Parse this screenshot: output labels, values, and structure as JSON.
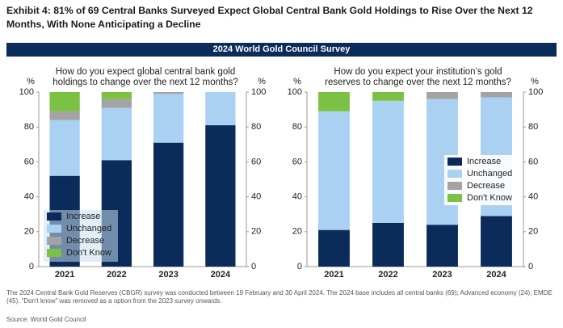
{
  "exhibit_title": "Exhibit 4: 81% of 69 Central Banks Surveyed Expect Global Central Bank Gold Holdings to Rise Over the Next 12 Months, With None Anticipating a Decline",
  "banner": "2024 World Gold Council Survey",
  "chart_data": [
    {
      "type": "stacked_bar",
      "title": "How do you expect global central bank gold holdings to change over the next 12 months?",
      "y_label": "%",
      "y2_label": "%",
      "categories": [
        "2021",
        "2022",
        "2023",
        "2024"
      ],
      "series": [
        {
          "name": "Increase",
          "color": "#0b2b5a",
          "values": [
            52,
            61,
            71,
            81
          ]
        },
        {
          "name": "Unchanged",
          "color": "#aad1f2",
          "values": [
            32,
            30,
            28,
            19
          ]
        },
        {
          "name": "Decrease",
          "color": "#a3a3a3",
          "values": [
            5,
            5,
            1,
            0
          ]
        },
        {
          "name": "Don't Know",
          "color": "#7cc143",
          "values": [
            11,
            4,
            null,
            null
          ]
        }
      ],
      "ylim": [
        0,
        100
      ],
      "yticks": [
        0,
        20,
        40,
        60,
        80,
        100
      ],
      "y2lim": [
        0,
        100
      ],
      "y2ticks": [
        0,
        20,
        40,
        60,
        80,
        100
      ],
      "grid": false,
      "legend": "lower left"
    },
    {
      "type": "stacked_bar",
      "title": "How do you expect your institution’s gold reserves to change over the next 12 months?",
      "y_label": "%",
      "y2_label": "%",
      "categories": [
        "2021",
        "2022",
        "2023",
        "2024"
      ],
      "series": [
        {
          "name": "Increase",
          "color": "#0b2b5a",
          "values": [
            21,
            25,
            24,
            29
          ]
        },
        {
          "name": "Unchanged",
          "color": "#aad1f2",
          "values": [
            68,
            70,
            72,
            68
          ]
        },
        {
          "name": "Decrease",
          "color": "#a3a3a3",
          "values": [
            0,
            0,
            4,
            3
          ]
        },
        {
          "name": "Don't Know",
          "color": "#7cc143",
          "values": [
            11,
            5,
            null,
            null
          ]
        }
      ],
      "ylim": [
        0,
        100
      ],
      "yticks": [
        0,
        20,
        40,
        60,
        80,
        100
      ],
      "y2lim": [
        0,
        100
      ],
      "y2ticks": [
        0,
        20,
        40,
        60,
        80,
        100
      ],
      "grid": false,
      "legend": "center right"
    }
  ],
  "note": "The 2024 Central Bank Gold Reserves (CBGR) survey was conducted between 19 February and 30 April 2024. The 2024 base includes all central banks (69); Advanced economy (24); EMDE (45). “Don't know” was removed as a option from the 2023 survey onwards.",
  "source": "Source: World Gold Council"
}
